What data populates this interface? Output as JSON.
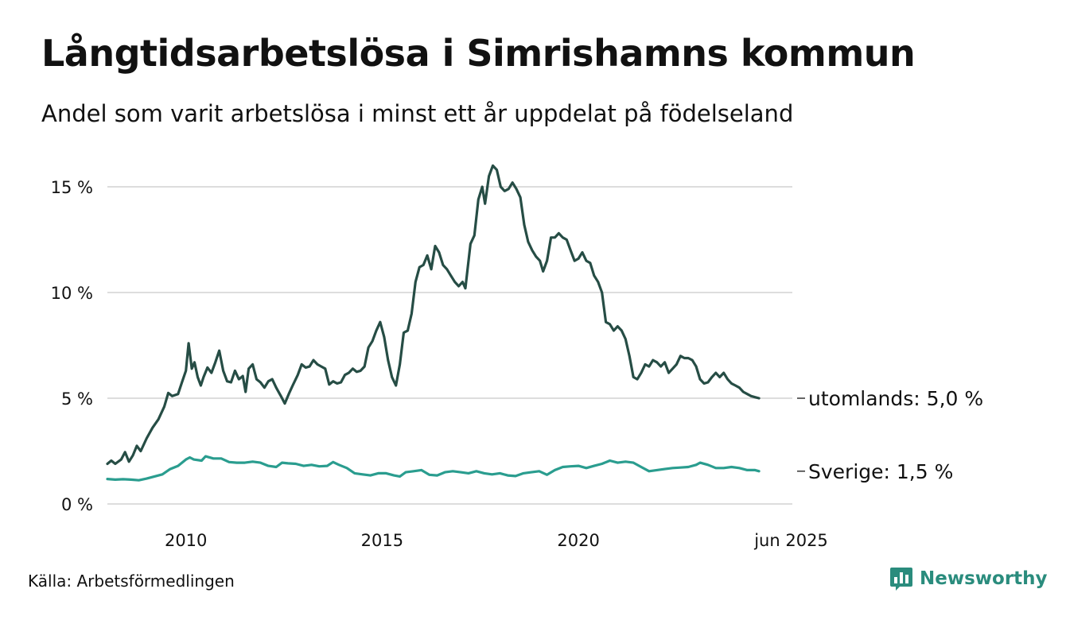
{
  "header": {
    "title": "Långtidsarbetslösa i Simrishamns kommun",
    "subtitle": "Andel som varit arbetslösa i minst ett år uppdelat på födelseland"
  },
  "footer": {
    "source": "Källa: Arbetsförmedlingen",
    "brand": "Newsworthy",
    "brand_icon": "bar-chart-speech-bubble-icon"
  },
  "colors": {
    "utomlands": "#264d45",
    "sverige": "#2a9d8f",
    "grid": "#dddddd",
    "brand": "#2a8c7d"
  },
  "chart_data": {
    "type": "line",
    "title": "Långtidsarbetslösa i Simrishamns kommun",
    "subtitle": "Andel som varit arbetslösa i minst ett år uppdelat på födelseland",
    "x_ticks": [
      {
        "x": 2010,
        "label": "2010"
      },
      {
        "x": 2015,
        "label": "2015"
      },
      {
        "x": 2020,
        "label": "2020"
      },
      {
        "x": 2025.42,
        "label": "jun 2025"
      }
    ],
    "y_ticks": [
      {
        "y": 0,
        "label": "0 %"
      },
      {
        "y": 5,
        "label": "5 %"
      },
      {
        "y": 10,
        "label": "10 %"
      },
      {
        "y": 15,
        "label": "15 %"
      }
    ],
    "xlim": [
      2008.0,
      2025.45
    ],
    "ylim": [
      0,
      16.5
    ],
    "grid": true,
    "series": [
      {
        "name": "utomlands",
        "end_label": "utomlands: 5,0 %",
        "points": [
          [
            2008.0,
            1.9
          ],
          [
            2008.1,
            2.05
          ],
          [
            2008.2,
            1.9
          ],
          [
            2008.35,
            2.1
          ],
          [
            2008.45,
            2.45
          ],
          [
            2008.55,
            2.0
          ],
          [
            2008.65,
            2.3
          ],
          [
            2008.75,
            2.75
          ],
          [
            2008.85,
            2.5
          ],
          [
            2009.0,
            3.1
          ],
          [
            2009.15,
            3.6
          ],
          [
            2009.3,
            4.0
          ],
          [
            2009.45,
            4.6
          ],
          [
            2009.55,
            5.25
          ],
          [
            2009.65,
            5.1
          ],
          [
            2009.8,
            5.2
          ],
          [
            2009.9,
            5.75
          ],
          [
            2010.0,
            6.3
          ],
          [
            2010.07,
            7.6
          ],
          [
            2010.15,
            6.4
          ],
          [
            2010.22,
            6.7
          ],
          [
            2010.3,
            6.0
          ],
          [
            2010.38,
            5.6
          ],
          [
            2010.45,
            6.0
          ],
          [
            2010.55,
            6.45
          ],
          [
            2010.65,
            6.2
          ],
          [
            2010.75,
            6.7
          ],
          [
            2010.85,
            7.25
          ],
          [
            2010.95,
            6.3
          ],
          [
            2011.05,
            5.8
          ],
          [
            2011.15,
            5.75
          ],
          [
            2011.25,
            6.3
          ],
          [
            2011.35,
            5.9
          ],
          [
            2011.45,
            6.05
          ],
          [
            2011.52,
            5.3
          ],
          [
            2011.6,
            6.4
          ],
          [
            2011.7,
            6.6
          ],
          [
            2011.8,
            5.9
          ],
          [
            2011.9,
            5.75
          ],
          [
            2012.0,
            5.5
          ],
          [
            2012.1,
            5.8
          ],
          [
            2012.2,
            5.9
          ],
          [
            2012.3,
            5.5
          ],
          [
            2012.42,
            5.1
          ],
          [
            2012.52,
            4.75
          ],
          [
            2012.62,
            5.2
          ],
          [
            2012.72,
            5.6
          ],
          [
            2012.85,
            6.1
          ],
          [
            2012.95,
            6.6
          ],
          [
            2013.05,
            6.45
          ],
          [
            2013.15,
            6.5
          ],
          [
            2013.25,
            6.8
          ],
          [
            2013.35,
            6.6
          ],
          [
            2013.45,
            6.5
          ],
          [
            2013.55,
            6.4
          ],
          [
            2013.65,
            5.65
          ],
          [
            2013.75,
            5.8
          ],
          [
            2013.85,
            5.7
          ],
          [
            2013.95,
            5.75
          ],
          [
            2014.05,
            6.1
          ],
          [
            2014.15,
            6.2
          ],
          [
            2014.25,
            6.4
          ],
          [
            2014.35,
            6.25
          ],
          [
            2014.45,
            6.3
          ],
          [
            2014.55,
            6.5
          ],
          [
            2014.65,
            7.4
          ],
          [
            2014.75,
            7.7
          ],
          [
            2014.85,
            8.2
          ],
          [
            2014.95,
            8.6
          ],
          [
            2015.05,
            7.9
          ],
          [
            2015.15,
            6.8
          ],
          [
            2015.25,
            6.0
          ],
          [
            2015.35,
            5.6
          ],
          [
            2015.45,
            6.6
          ],
          [
            2015.55,
            8.1
          ],
          [
            2015.65,
            8.2
          ],
          [
            2015.75,
            9.0
          ],
          [
            2015.85,
            10.5
          ],
          [
            2015.95,
            11.2
          ],
          [
            2016.05,
            11.3
          ],
          [
            2016.15,
            11.75
          ],
          [
            2016.25,
            11.1
          ],
          [
            2016.35,
            12.2
          ],
          [
            2016.45,
            11.9
          ],
          [
            2016.55,
            11.3
          ],
          [
            2016.65,
            11.1
          ],
          [
            2016.75,
            10.8
          ],
          [
            2016.85,
            10.5
          ],
          [
            2016.95,
            10.3
          ],
          [
            2017.05,
            10.5
          ],
          [
            2017.12,
            10.2
          ],
          [
            2017.25,
            12.3
          ],
          [
            2017.35,
            12.7
          ],
          [
            2017.45,
            14.4
          ],
          [
            2017.55,
            15.0
          ],
          [
            2017.62,
            14.2
          ],
          [
            2017.72,
            15.5
          ],
          [
            2017.82,
            16.0
          ],
          [
            2017.92,
            15.8
          ],
          [
            2018.02,
            15.0
          ],
          [
            2018.12,
            14.8
          ],
          [
            2018.22,
            14.9
          ],
          [
            2018.32,
            15.2
          ],
          [
            2018.42,
            14.9
          ],
          [
            2018.52,
            14.5
          ],
          [
            2018.62,
            13.2
          ],
          [
            2018.72,
            12.4
          ],
          [
            2018.82,
            12.0
          ],
          [
            2018.92,
            11.7
          ],
          [
            2019.02,
            11.5
          ],
          [
            2019.1,
            11.0
          ],
          [
            2019.2,
            11.5
          ],
          [
            2019.3,
            12.6
          ],
          [
            2019.4,
            12.6
          ],
          [
            2019.5,
            12.8
          ],
          [
            2019.6,
            12.6
          ],
          [
            2019.7,
            12.5
          ],
          [
            2019.8,
            12.0
          ],
          [
            2019.9,
            11.5
          ],
          [
            2020.0,
            11.6
          ],
          [
            2020.1,
            11.9
          ],
          [
            2020.2,
            11.5
          ],
          [
            2020.3,
            11.4
          ],
          [
            2020.4,
            10.8
          ],
          [
            2020.5,
            10.5
          ],
          [
            2020.6,
            10.0
          ],
          [
            2020.7,
            8.6
          ],
          [
            2020.8,
            8.5
          ],
          [
            2020.9,
            8.2
          ],
          [
            2021.0,
            8.4
          ],
          [
            2021.1,
            8.2
          ],
          [
            2021.2,
            7.8
          ],
          [
            2021.3,
            7.0
          ],
          [
            2021.4,
            6.0
          ],
          [
            2021.5,
            5.9
          ],
          [
            2021.6,
            6.2
          ],
          [
            2021.7,
            6.6
          ],
          [
            2021.8,
            6.5
          ],
          [
            2021.9,
            6.8
          ],
          [
            2022.0,
            6.7
          ],
          [
            2022.1,
            6.5
          ],
          [
            2022.2,
            6.7
          ],
          [
            2022.3,
            6.2
          ],
          [
            2022.4,
            6.4
          ],
          [
            2022.5,
            6.6
          ],
          [
            2022.6,
            7.0
          ],
          [
            2022.7,
            6.9
          ],
          [
            2022.8,
            6.9
          ],
          [
            2022.9,
            6.8
          ],
          [
            2023.0,
            6.5
          ],
          [
            2023.1,
            5.9
          ],
          [
            2023.2,
            5.7
          ],
          [
            2023.3,
            5.75
          ],
          [
            2023.4,
            6.0
          ],
          [
            2023.5,
            6.2
          ],
          [
            2023.6,
            6.0
          ],
          [
            2023.7,
            6.2
          ],
          [
            2023.8,
            5.9
          ],
          [
            2023.9,
            5.7
          ],
          [
            2024.0,
            5.6
          ],
          [
            2024.1,
            5.5
          ],
          [
            2024.2,
            5.3
          ],
          [
            2024.3,
            5.2
          ],
          [
            2024.4,
            5.1
          ],
          [
            2024.5,
            5.05
          ],
          [
            2024.6,
            5.0
          ]
        ]
      },
      {
        "name": "Sverige",
        "end_label": "Sverige: 1,5 %",
        "points": [
          [
            2008.0,
            1.18
          ],
          [
            2008.2,
            1.15
          ],
          [
            2008.4,
            1.17
          ],
          [
            2008.6,
            1.15
          ],
          [
            2008.8,
            1.12
          ],
          [
            2009.0,
            1.2
          ],
          [
            2009.2,
            1.3
          ],
          [
            2009.4,
            1.4
          ],
          [
            2009.6,
            1.65
          ],
          [
            2009.8,
            1.8
          ],
          [
            2010.0,
            2.1
          ],
          [
            2010.1,
            2.2
          ],
          [
            2010.2,
            2.1
          ],
          [
            2010.4,
            2.05
          ],
          [
            2010.5,
            2.25
          ],
          [
            2010.7,
            2.15
          ],
          [
            2010.9,
            2.15
          ],
          [
            2011.1,
            1.98
          ],
          [
            2011.3,
            1.95
          ],
          [
            2011.5,
            1.95
          ],
          [
            2011.7,
            2.0
          ],
          [
            2011.9,
            1.95
          ],
          [
            2012.1,
            1.8
          ],
          [
            2012.3,
            1.75
          ],
          [
            2012.45,
            1.95
          ],
          [
            2012.6,
            1.92
          ],
          [
            2012.8,
            1.9
          ],
          [
            2013.0,
            1.8
          ],
          [
            2013.2,
            1.85
          ],
          [
            2013.4,
            1.78
          ],
          [
            2013.6,
            1.8
          ],
          [
            2013.75,
            1.98
          ],
          [
            2013.9,
            1.85
          ],
          [
            2014.1,
            1.7
          ],
          [
            2014.3,
            1.45
          ],
          [
            2014.5,
            1.4
          ],
          [
            2014.7,
            1.35
          ],
          [
            2014.9,
            1.45
          ],
          [
            2015.1,
            1.45
          ],
          [
            2015.3,
            1.35
          ],
          [
            2015.45,
            1.3
          ],
          [
            2015.6,
            1.5
          ],
          [
            2015.8,
            1.55
          ],
          [
            2016.0,
            1.6
          ],
          [
            2016.2,
            1.38
          ],
          [
            2016.4,
            1.35
          ],
          [
            2016.6,
            1.5
          ],
          [
            2016.8,
            1.55
          ],
          [
            2017.0,
            1.5
          ],
          [
            2017.2,
            1.45
          ],
          [
            2017.4,
            1.55
          ],
          [
            2017.6,
            1.45
          ],
          [
            2017.8,
            1.4
          ],
          [
            2018.0,
            1.45
          ],
          [
            2018.2,
            1.35
          ],
          [
            2018.4,
            1.32
          ],
          [
            2018.6,
            1.45
          ],
          [
            2018.8,
            1.5
          ],
          [
            2019.0,
            1.55
          ],
          [
            2019.2,
            1.38
          ],
          [
            2019.4,
            1.6
          ],
          [
            2019.6,
            1.75
          ],
          [
            2019.8,
            1.78
          ],
          [
            2020.0,
            1.8
          ],
          [
            2020.2,
            1.7
          ],
          [
            2020.4,
            1.8
          ],
          [
            2020.6,
            1.9
          ],
          [
            2020.8,
            2.05
          ],
          [
            2021.0,
            1.95
          ],
          [
            2021.2,
            2.0
          ],
          [
            2021.4,
            1.95
          ],
          [
            2021.6,
            1.75
          ],
          [
            2021.8,
            1.55
          ],
          [
            2022.0,
            1.6
          ],
          [
            2022.2,
            1.65
          ],
          [
            2022.4,
            1.7
          ],
          [
            2022.6,
            1.72
          ],
          [
            2022.8,
            1.75
          ],
          [
            2023.0,
            1.85
          ],
          [
            2023.1,
            1.95
          ],
          [
            2023.3,
            1.85
          ],
          [
            2023.5,
            1.7
          ],
          [
            2023.7,
            1.7
          ],
          [
            2023.9,
            1.75
          ],
          [
            2024.1,
            1.7
          ],
          [
            2024.3,
            1.6
          ],
          [
            2024.5,
            1.6
          ],
          [
            2024.6,
            1.55
          ]
        ]
      }
    ]
  }
}
